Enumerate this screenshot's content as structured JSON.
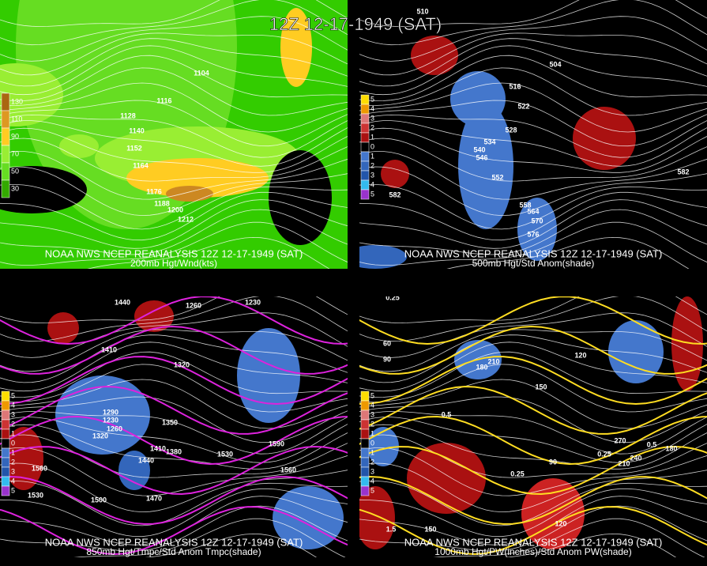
{
  "title": "12Z 12-17-1949 (SAT)",
  "panels": [
    {
      "caption": "NOAA NWS NCEP REANALYSIS 12Z 12-17-1949 (SAT)",
      "subtitle": "200mb Hgt/Wnd(kts)",
      "legend": [
        130,
        110,
        90,
        70,
        50,
        30
      ],
      "contour_labels": [
        "1104",
        "1116",
        "1128",
        "1140",
        "1152",
        "1164",
        "1176",
        "1188",
        "1200",
        "1212"
      ]
    },
    {
      "caption": "NOAA NWS NCEP REANALYSIS 12Z 12-17-1949 (SAT)",
      "subtitle": "500mb Hgt/Std Anom(shade)",
      "legend": [
        5,
        4,
        3,
        2,
        1,
        0,
        1,
        2,
        3,
        4,
        5
      ],
      "contour_labels": [
        "510",
        "504",
        "516",
        "522",
        "528",
        "534",
        "540",
        "546",
        "552",
        "558",
        "564",
        "570",
        "576",
        "582",
        "582"
      ]
    },
    {
      "caption": "NOAA NWS NCEP REANALYSIS 12Z 12-17-1949 (SAT)",
      "subtitle": "850mb Hgt/Tmpc/Std Anom Tmpc(shade)",
      "legend": [
        5,
        4,
        3,
        2,
        1,
        0,
        1,
        2,
        3,
        4,
        5
      ],
      "contour_labels": [
        "1440",
        "1260",
        "1230",
        "1410",
        "1320",
        "1290",
        "1230",
        "1260",
        "1320",
        "1350",
        "1410",
        "1380",
        "1440",
        "1530",
        "1560",
        "1470",
        "1500",
        "1530",
        "1560",
        "1590"
      ]
    },
    {
      "caption": "NOAA NWS NCEP REANALYSIS 12Z 12-17-1949 (SAT)",
      "subtitle": "1000mb Hgt/PW(inches)/Std Anom PW(shade)",
      "legend": [
        5,
        4,
        3,
        2,
        1,
        0,
        1,
        2,
        3,
        4,
        5
      ],
      "contour_labels": [
        "0.25",
        "60",
        "90",
        "120",
        "150",
        "180",
        "210",
        "0.5",
        "0.25",
        "0.25",
        "0.5",
        "180",
        "270",
        "240",
        "210",
        "90",
        "1.5",
        "150",
        "120"
      ]
    }
  ]
}
